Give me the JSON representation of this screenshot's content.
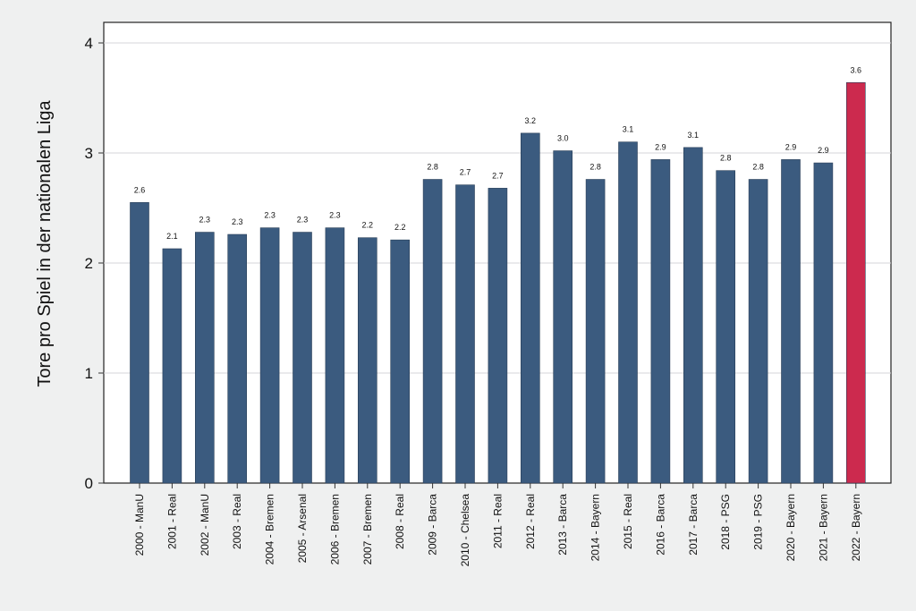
{
  "chart_data": {
    "type": "bar",
    "title": "",
    "xlabel": "",
    "ylabel": "Tore pro Spiel in der nationalen Liga",
    "ylim": [
      0,
      4
    ],
    "yticks": [
      0,
      1,
      2,
      3,
      4
    ],
    "grid": true,
    "categories": [
      "2000 - ManU",
      "2001 - Real",
      "2002 - ManU",
      "2003 - Real",
      "2004 - Bremen",
      "2005 - Arsenal",
      "2006 - Bremen",
      "2007 - Bremen",
      "2008 - Real",
      "2009 - Barca",
      "2010 - Chelsea",
      "2011 - Real",
      "2012 - Real",
      "2013 - Barca",
      "2014 - Bayern",
      "2015 - Real",
      "2016 - Barca",
      "2017 - Barca",
      "2018 - PSG",
      "2019 - PSG",
      "2020 - Bayern",
      "2021 - Bayern",
      "2022 - Bayern"
    ],
    "values": [
      2.55,
      2.13,
      2.28,
      2.26,
      2.32,
      2.28,
      2.32,
      2.23,
      2.21,
      2.76,
      2.71,
      2.68,
      3.18,
      3.02,
      2.76,
      3.1,
      2.94,
      3.05,
      2.84,
      2.76,
      2.94,
      2.91,
      3.64
    ],
    "data_labels": [
      "2.6",
      "2.1",
      "2.3",
      "2.3",
      "2.3",
      "2.3",
      "2.3",
      "2.2",
      "2.2",
      "2.8",
      "2.7",
      "2.7",
      "3.2",
      "3.0",
      "2.8",
      "3.1",
      "2.9",
      "3.1",
      "2.8",
      "2.8",
      "2.9",
      "2.9",
      "3.6"
    ],
    "bar_color": "#3b5b7f",
    "highlight_color": "#cc2a4e",
    "highlight_index": 22
  }
}
